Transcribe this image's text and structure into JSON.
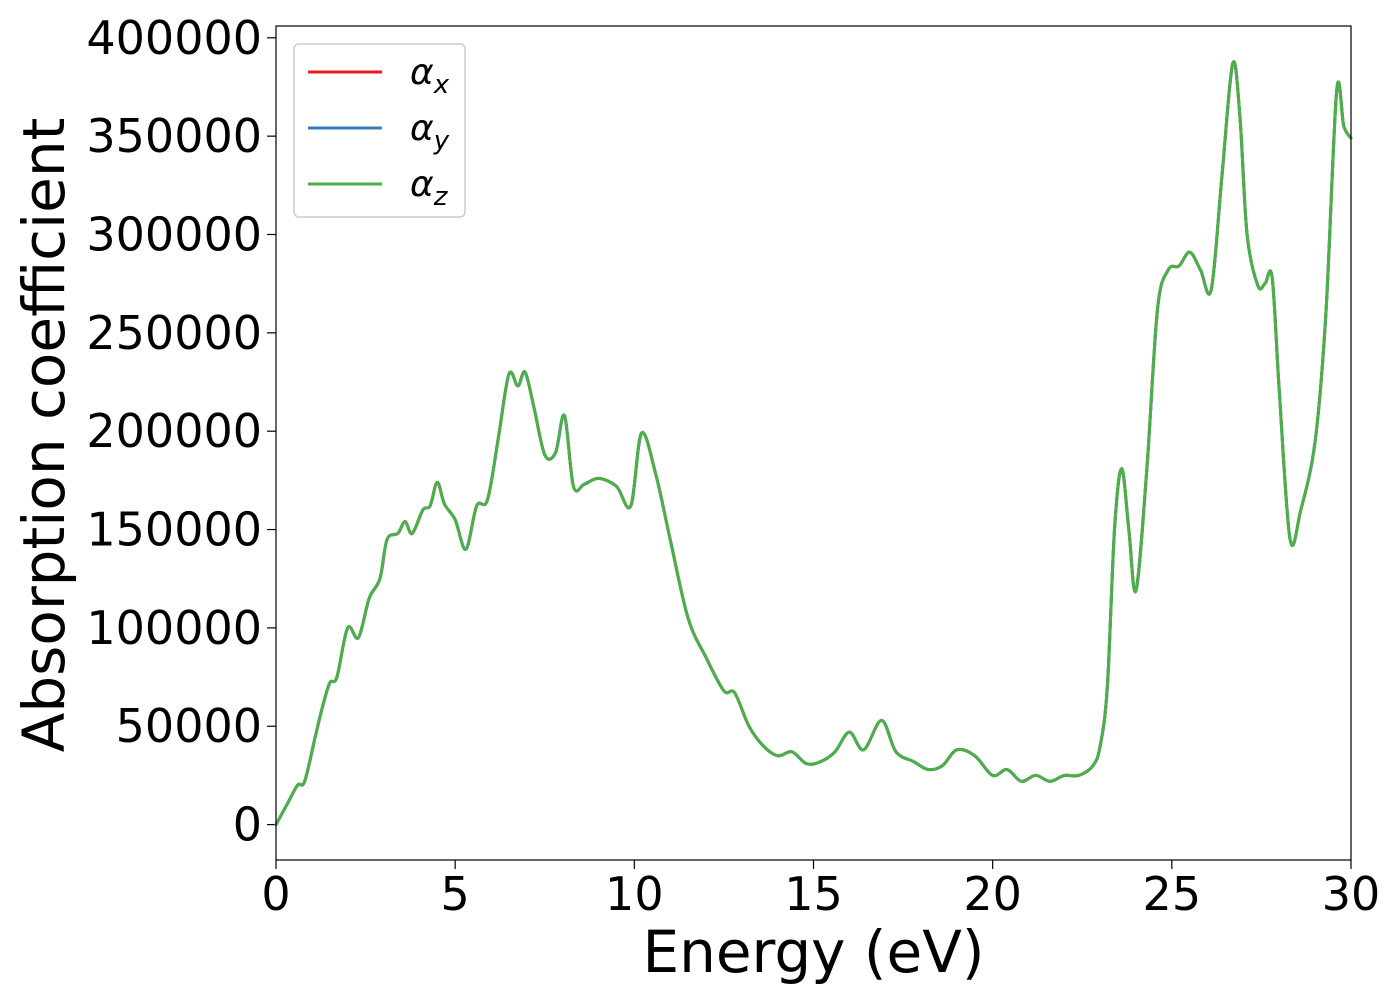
{
  "chart_data": {
    "type": "line",
    "title": "",
    "xlabel": "Energy (eV)",
    "ylabel": "Absorption coefficient",
    "xlim": [
      0,
      30
    ],
    "ylim": [
      -18000,
      406000
    ],
    "xticks": [
      0,
      5,
      10,
      15,
      20,
      25,
      30
    ],
    "yticks": [
      0,
      50000,
      100000,
      150000,
      200000,
      250000,
      300000,
      350000,
      400000
    ],
    "grid": false,
    "legend_position": "top-left",
    "series": [
      {
        "name": "αx",
        "base": "α",
        "sub": "x",
        "color": "#e41a1c"
      },
      {
        "name": "αy",
        "base": "α",
        "sub": "y",
        "color": "#377eb8"
      },
      {
        "name": "αz",
        "base": "α",
        "sub": "z",
        "color": "#4daf4a"
      }
    ],
    "x": [
      0,
      0.3,
      0.6,
      0.8,
      1.1,
      1.3,
      1.5,
      1.7,
      2.0,
      2.3,
      2.6,
      2.9,
      3.1,
      3.4,
      3.6,
      3.8,
      4.1,
      4.3,
      4.5,
      4.7,
      5.0,
      5.3,
      5.6,
      5.9,
      6.2,
      6.5,
      6.75,
      6.95,
      7.2,
      7.5,
      7.8,
      8.05,
      8.3,
      8.6,
      9.0,
      9.5,
      9.9,
      10.2,
      10.6,
      11.0,
      11.5,
      12.0,
      12.5,
      12.8,
      13.2,
      13.6,
      14.0,
      14.4,
      14.8,
      15.2,
      15.6,
      16.0,
      16.4,
      16.9,
      17.3,
      17.8,
      18.2,
      18.6,
      19.0,
      19.5,
      20.0,
      20.4,
      20.8,
      21.2,
      21.6,
      22.0,
      22.4,
      22.8,
      23.0,
      23.2,
      23.4,
      23.6,
      23.8,
      24.0,
      24.3,
      24.6,
      24.9,
      25.2,
      25.5,
      25.8,
      26.1,
      26.4,
      26.7,
      26.9,
      27.1,
      27.4,
      27.6,
      27.8,
      28.0,
      28.3,
      28.6,
      29.0,
      29.3,
      29.6,
      29.8,
      30.0
    ],
    "values": [
      0,
      10000,
      20000,
      22000,
      45000,
      60000,
      72000,
      75000,
      100000,
      95000,
      115000,
      125000,
      145000,
      148000,
      154000,
      148000,
      160000,
      162000,
      174000,
      163000,
      155000,
      140000,
      162000,
      165000,
      196000,
      229000,
      223000,
      230000,
      212000,
      188000,
      189000,
      208000,
      172000,
      173000,
      176000,
      172000,
      162000,
      199000,
      178000,
      145000,
      105000,
      85000,
      68000,
      67000,
      50000,
      40000,
      35000,
      37000,
      31000,
      32000,
      37000,
      47000,
      38000,
      53000,
      37000,
      32000,
      28000,
      30000,
      38000,
      35000,
      25000,
      28000,
      22000,
      25000,
      22000,
      25000,
      25000,
      30000,
      40000,
      70000,
      150000,
      181000,
      150000,
      119000,
      180000,
      262000,
      282000,
      284000,
      291000,
      282000,
      272000,
      330000,
      387000,
      360000,
      300000,
      274000,
      275000,
      278000,
      220000,
      145000,
      160000,
      195000,
      260000,
      373000,
      355000,
      349000
    ]
  }
}
